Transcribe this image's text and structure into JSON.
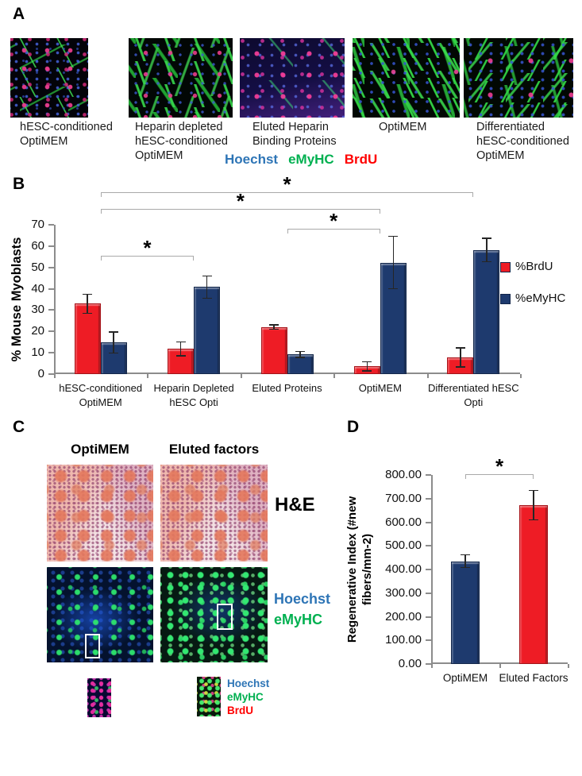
{
  "panels": {
    "a": "A",
    "b": "B",
    "c": "C",
    "d": "D"
  },
  "colors": {
    "series_red": "#EE1C25",
    "series_navy": "#1E3A6E",
    "hoechst_blue": "#2E75B6",
    "emyhc_green": "#00B050",
    "brdu_red": "#FF0000",
    "bracket_gray": "#A9A9A9"
  },
  "panelA": {
    "captions": [
      "hESC-conditioned\nOptiMEM",
      "Heparin depleted\nhESC-conditioned\nOptiMEM",
      "Eluted  Heparin\nBinding Proteins",
      "OptiMEM",
      "Differentiated\nhESC-conditioned\nOptiMEM"
    ],
    "stains": [
      {
        "label": "Hoechst",
        "color": "#2E75B6"
      },
      {
        "label": "eMyHC",
        "color": "#00B050"
      },
      {
        "label": "BrdU",
        "color": "#FF0000"
      }
    ]
  },
  "panelC": {
    "col_headers": [
      "OptiMEM",
      "Eluted factors"
    ],
    "he_label": "H&E",
    "fluor_labels": [
      {
        "label": "Hoechst",
        "color": "#2E75B6"
      },
      {
        "label": "eMyHC",
        "color": "#00B050"
      }
    ],
    "inset_legend": [
      {
        "label": "Hoechst",
        "color": "#2E75B6"
      },
      {
        "label": "eMyHC",
        "color": "#00B050"
      },
      {
        "label": "BrdU",
        "color": "#FF0000"
      }
    ]
  },
  "chart_data": [
    {
      "type": "bar",
      "panel": "B",
      "ylabel": "% Mouse Myoblasts",
      "categories": [
        [
          "hESC-conditioned",
          "OptiMEM"
        ],
        [
          "Heparin Depleted",
          "hESC Opti"
        ],
        [
          "Eluted Proteins"
        ],
        [
          "OptiMEM"
        ],
        [
          "Differentiated hESC",
          "Opti"
        ]
      ],
      "series": [
        {
          "name": "%BrdU",
          "color": "#EE1C25",
          "values": [
            33,
            11.8,
            22,
            3.6,
            7.8
          ],
          "errors": [
            4.5,
            3.3,
            1,
            2.2,
            4.4
          ]
        },
        {
          "name": "%eMyHC",
          "color": "#1E3A6E",
          "values": [
            14.8,
            40.8,
            9.3,
            52.3,
            58.2
          ],
          "errors": [
            5,
            5.2,
            1.4,
            12.3,
            5.5
          ]
        }
      ],
      "ylim": [
        0,
        70
      ],
      "ytick_step": 10,
      "grid": false,
      "legend_position": "right",
      "brackets": [
        {
          "from": 0,
          "to": 4,
          "y": 14,
          "label": "*"
        },
        {
          "from": 0,
          "to": 3,
          "y": 35,
          "label": "*"
        },
        {
          "from": 2,
          "to": 3,
          "y": 60,
          "label": "*"
        },
        {
          "from": 0,
          "to": 1,
          "y": 94,
          "label": "*"
        }
      ]
    },
    {
      "type": "bar",
      "panel": "D",
      "ylabel": "Regenerative Index (#new fibers/mm-2)",
      "categories": [
        [
          "OptiMEM"
        ],
        [
          "Eluted Factors"
        ]
      ],
      "series": [
        {
          "name": "",
          "colors": [
            "#1E3A6E",
            "#EE1C25"
          ],
          "values": [
            435,
            672
          ],
          "errors": [
            27,
            62
          ]
        }
      ],
      "ylim": [
        0,
        800
      ],
      "ytick_step": 100,
      "tick_format": "2dp",
      "grid": false,
      "legend_position": "none",
      "brackets": [
        {
          "from": 0,
          "to": 1,
          "y": 77,
          "label": "*"
        }
      ]
    }
  ]
}
